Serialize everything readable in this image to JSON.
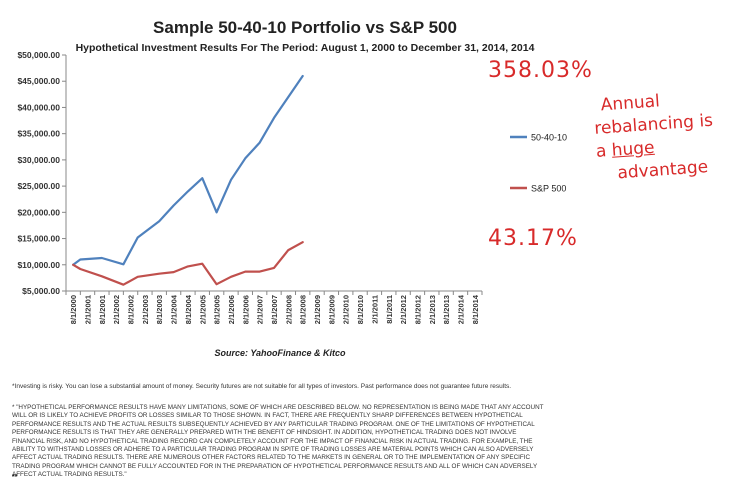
{
  "chart_data": {
    "type": "line",
    "title": "Sample 50-40-10 Portfolio vs S&P 500",
    "subtitle": "Hypothetical Investment  Results For The Period: August 1, 2000 to  December 31, 2014, 2014",
    "categories": [
      "8/1/2000",
      "2/1/2001",
      "8/1/2001",
      "2/1/2002",
      "8/1/2002",
      "2/1/2003",
      "8/1/2003",
      "2/1/2004",
      "8/1/2004",
      "2/1/2005",
      "8/1/2005",
      "2/1/2006",
      "8/1/2006",
      "2/1/2007",
      "8/1/2007",
      "2/1/2008",
      "8/1/2008",
      "2/1/2009",
      "8/1/2009",
      "2/1/2010",
      "8/1/2010",
      "2/1/2011",
      "8/1/2011",
      "2/1/2012",
      "8/1/2012",
      "2/1/2013",
      "8/1/2013",
      "2/1/2014",
      "8/1/2014"
    ],
    "series": [
      {
        "name": "50-40-10",
        "color": "#4f81bd",
        "points": [
          [
            0,
            10000
          ],
          [
            1,
            11000
          ],
          [
            4,
            11300
          ],
          [
            7,
            10100
          ],
          [
            9,
            15200
          ],
          [
            12,
            18300
          ],
          [
            14,
            21300
          ],
          [
            16,
            24000
          ],
          [
            18,
            26500
          ],
          [
            20,
            20000
          ],
          [
            22,
            26200
          ],
          [
            24,
            30300
          ],
          [
            26,
            33300
          ],
          [
            28,
            38000
          ],
          [
            30,
            42000
          ],
          [
            32,
            46000
          ]
        ]
      },
      {
        "name": "S&P 500",
        "color": "#c0504d",
        "points": [
          [
            0,
            10000
          ],
          [
            1,
            9200
          ],
          [
            4,
            7800
          ],
          [
            7,
            6200
          ],
          [
            9,
            7700
          ],
          [
            12,
            8300
          ],
          [
            14,
            8600
          ],
          [
            16,
            9700
          ],
          [
            18,
            10200
          ],
          [
            20,
            6300
          ],
          [
            22,
            7700
          ],
          [
            24,
            8700
          ],
          [
            26,
            8700
          ],
          [
            28,
            9400
          ],
          [
            30,
            12800
          ],
          [
            32,
            14300
          ]
        ]
      }
    ],
    "yticks": [
      "$5,000.00",
      "$10,000.00",
      "$15,000.00",
      "$20,000.00",
      "$25,000.00",
      "$30,000.00",
      "$35,000.00",
      "$40,000.00",
      "$45,000.00",
      "$50,000.00"
    ],
    "ylim": [
      5000,
      50000
    ],
    "legend_position": "right",
    "grid": false
  },
  "annotations": {
    "top_pct": "358.03%",
    "bottom_pct": "43.17%",
    "note_line1": "Annual",
    "note_line2": "rebalancing is",
    "note_line3_pre": "a ",
    "note_line3_huge": "huge",
    "note_line4": "advantage"
  },
  "source": "Source: YahooFinance & Kitco",
  "disclaimer1": "*Investing is risky. You can lose a substantial amount of money. Security futures are not suitable for all types of investors. Past performance does not guarantee future results.",
  "disclaimer2": "* \"HYPOTHETICAL PERFORMANCE RESULTS HAVE MANY LIMITATIONS, SOME OF WHICH ARE DESCRIBED BELOW. NO REPRESENTATION IS BEING MADE THAT ANY ACCOUNT WILL OR IS LIKELY TO ACHIEVE PROFITS OR LOSSES SIMILAR TO THOSE SHOWN. IN FACT, THERE ARE FREQUENTLY SHARP DIFFERENCES BETWEEN HYPOTHETICAL PERFORMANCE RESULTS AND THE ACTUAL RESULTS SUBSEQUENTLY ACHIEVED BY ANY PARTICULAR TRADING PROGRAM. ONE OF THE LIMITATIONS OF HYPOTHETICAL PERFORMANCE RESULTS IS THAT THEY ARE GENERALLY PREPARED WITH THE BENEFIT OF HINDSIGHT. IN ADDITION, HYPOTHETICAL TRADING DOES NOT INVOLVE FINANCIAL RISK, AND NO HYPOTHETICAL TRADING RECORD CAN COMPLETELY ACCOUNT FOR THE IMPACT OF FINANCIAL RISK IN ACTUAL TRADING. FOR EXAMPLE, THE ABILITY TO WITHSTAND LOSSES OR ADHERE TO A PARTICULAR TRADING PROGRAM IN SPITE OF TRADING LOSSES ARE MATERIAL POINTS WHICH CAN ALSO ADVERSELY AFFECT ACTUAL TRADING RESULTS. THERE ARE NUMEROUS OTHER FACTORS RELATED TO THE MARKETS IN GENERAL OR TO THE IMPLEMENTATION OF ANY SPECIFIC TRADING PROGRAM WHICH CANNOT BE FULLY ACCOUNTED FOR IN THE PREPARATION OF HYPOTHETICAL PERFORMANCE RESULTS AND ALL OF WHICH CAN ADVERSELY AFFECT ACTUAL TRADING RESULTS.\"",
  "disclaimer_mark": "**"
}
